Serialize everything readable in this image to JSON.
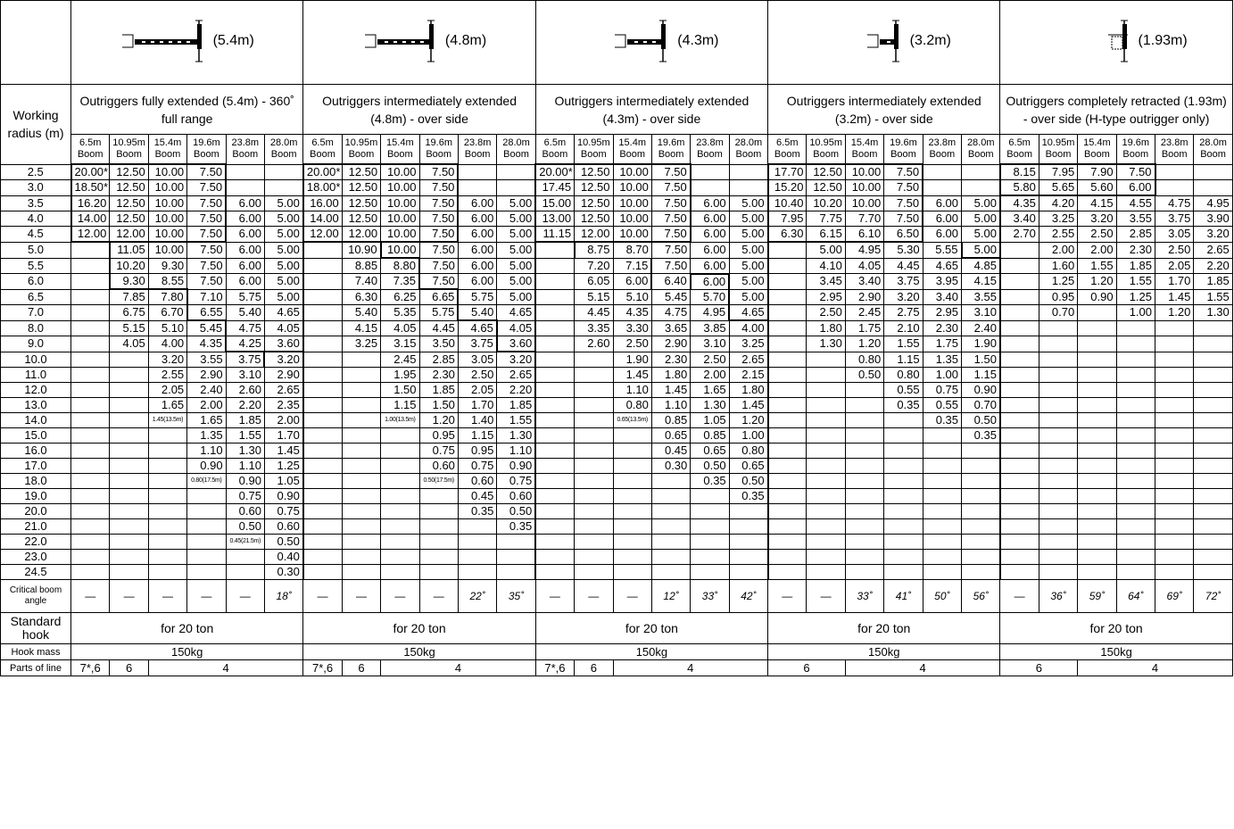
{
  "header": {
    "working_radius_label": "Working radius (m)",
    "critical_angle_label": "Critical boom angle",
    "standard_hook_label": "Standard hook",
    "hook_mass_label": "Hook mass",
    "parts_of_line_label": "Parts of line"
  },
  "booms": [
    "6.5m Boom",
    "10.95m Boom",
    "15.4m Boom",
    "19.6m Boom",
    "23.8m Boom",
    "28.0m Boom"
  ],
  "configs": [
    {
      "icon": "outrigger-fully-extended-icon",
      "extension": "(5.4m)",
      "description": "Outriggers fully extended (5.4m) - 360˚ full range",
      "critical_angles": [
        "—",
        "—",
        "—",
        "—",
        "—",
        "18˚"
      ],
      "hook": "for 20 ton",
      "hook_mass": "150kg",
      "parts": [
        "7*,6",
        "6",
        "4"
      ],
      "parts_spans": [
        1,
        1,
        4
      ]
    },
    {
      "icon": "outrigger-intermediate-4.8-icon",
      "extension": "(4.8m)",
      "description": "Outriggers intermediately extended (4.8m) - over side",
      "critical_angles": [
        "—",
        "—",
        "—",
        "—",
        "22˚",
        "35˚"
      ],
      "hook": "for 20 ton",
      "hook_mass": "150kg",
      "parts": [
        "7*,6",
        "6",
        "4"
      ],
      "parts_spans": [
        1,
        1,
        4
      ]
    },
    {
      "icon": "outrigger-intermediate-4.3-icon",
      "extension": "(4.3m)",
      "description": "Outriggers intermediately extended (4.3m) - over side",
      "critical_angles": [
        "—",
        "—",
        "—",
        "12˚",
        "33˚",
        "42˚"
      ],
      "hook": "for 20 ton",
      "hook_mass": "150kg",
      "parts": [
        "7*,6",
        "6",
        "4"
      ],
      "parts_spans": [
        1,
        1,
        4
      ]
    },
    {
      "icon": "outrigger-intermediate-3.2-icon",
      "extension": "(3.2m)",
      "description": "Outriggers intermediately extended (3.2m) - over side",
      "critical_angles": [
        "—",
        "—",
        "33˚",
        "41˚",
        "50˚",
        "56˚"
      ],
      "hook": "for 20 ton",
      "hook_mass": "150kg",
      "parts": [
        "6",
        "4"
      ],
      "parts_spans": [
        2,
        4
      ]
    },
    {
      "icon": "outrigger-retracted-icon",
      "extension": "(1.93m)",
      "description": "Outriggers completely retracted (1.93m) - over side (H-type outrigger only)",
      "critical_angles": [
        "—",
        "36˚",
        "59˚",
        "64˚",
        "69˚",
        "72˚"
      ],
      "hook": "for 20 ton",
      "hook_mass": "150kg",
      "parts": [
        "6",
        "4"
      ],
      "parts_spans": [
        2,
        4
      ]
    }
  ],
  "rows": [
    {
      "r": "2.5",
      "v": [
        "20.00*",
        "12.50",
        "10.00",
        "7.50",
        "",
        "",
        "20.00*",
        "12.50",
        "10.00",
        "7.50",
        "",
        "",
        "20.00*",
        "12.50",
        "10.00",
        "7.50",
        "",
        "",
        "17.70",
        "12.50",
        "10.00",
        "7.50",
        "",
        "",
        "8.15",
        "7.95",
        "7.90",
        "7.50",
        "",
        ""
      ]
    },
    {
      "r": "3.0",
      "v": [
        "18.50*",
        "12.50",
        "10.00",
        "7.50",
        "",
        "",
        "18.00*",
        "12.50",
        "10.00",
        "7.50",
        "",
        "",
        "17.45",
        "12.50",
        "10.00",
        "7.50",
        "",
        "",
        "15.20",
        "12.50",
        "10.00",
        "7.50",
        "",
        "",
        "5.80",
        "5.65",
        "5.60",
        "6.00",
        "",
        ""
      ]
    },
    {
      "r": "3.5",
      "v": [
        "16.20",
        "12.50",
        "10.00",
        "7.50",
        "6.00",
        "5.00",
        "16.00",
        "12.50",
        "10.00",
        "7.50",
        "6.00",
        "5.00",
        "15.00",
        "12.50",
        "10.00",
        "7.50",
        "6.00",
        "5.00",
        "10.40",
        "10.20",
        "10.00",
        "7.50",
        "6.00",
        "5.00",
        "4.35",
        "4.20",
        "4.15",
        "4.55",
        "4.75",
        "4.95"
      ]
    },
    {
      "r": "4.0",
      "v": [
        "14.00",
        "12.50",
        "10.00",
        "7.50",
        "6.00",
        "5.00",
        "14.00",
        "12.50",
        "10.00",
        "7.50",
        "6.00",
        "5.00",
        "13.00",
        "12.50",
        "10.00",
        "7.50",
        "6.00",
        "5.00",
        "7.95",
        "7.75",
        "7.70",
        "7.50",
        "6.00",
        "5.00",
        "3.40",
        "3.25",
        "3.20",
        "3.55",
        "3.75",
        "3.90"
      ]
    },
    {
      "r": "4.5",
      "v": [
        "12.00",
        "12.00",
        "10.00",
        "7.50",
        "6.00",
        "5.00",
        "12.00",
        "12.00",
        "10.00",
        "7.50",
        "6.00",
        "5.00",
        "11.15",
        "12.00",
        "10.00",
        "7.50",
        "6.00",
        "5.00",
        "6.30",
        "6.15",
        "6.10",
        "6.50",
        "6.00",
        "5.00",
        "2.70",
        "2.55",
        "2.50",
        "2.85",
        "3.05",
        "3.20"
      ]
    },
    {
      "r": "5.0",
      "v": [
        "",
        "11.05",
        "10.00",
        "7.50",
        "6.00",
        "5.00",
        "",
        "10.90",
        "10.00",
        "7.50",
        "6.00",
        "5.00",
        "",
        "8.75",
        "8.70",
        "7.50",
        "6.00",
        "5.00",
        "",
        "5.00",
        "4.95",
        "5.30",
        "5.55",
        "5.00",
        "",
        "2.00",
        "2.00",
        "2.30",
        "2.50",
        "2.65"
      ]
    },
    {
      "r": "5.5",
      "v": [
        "",
        "10.20",
        "9.30",
        "7.50",
        "6.00",
        "5.00",
        "",
        "8.85",
        "8.80",
        "7.50",
        "6.00",
        "5.00",
        "",
        "7.20",
        "7.15",
        "7.50",
        "6.00",
        "5.00",
        "",
        "4.10",
        "4.05",
        "4.45",
        "4.65",
        "4.85",
        "",
        "1.60",
        "1.55",
        "1.85",
        "2.05",
        "2.20"
      ]
    },
    {
      "r": "6.0",
      "v": [
        "",
        "9.30",
        "8.55",
        "7.50",
        "6.00",
        "5.00",
        "",
        "7.40",
        "7.35",
        "7.50",
        "6.00",
        "5.00",
        "",
        "6.05",
        "6.00",
        "6.40",
        "6.00",
        "5.00",
        "",
        "3.45",
        "3.40",
        "3.75",
        "3.95",
        "4.15",
        "",
        "1.25",
        "1.20",
        "1.55",
        "1.70",
        "1.85"
      ]
    },
    {
      "r": "6.5",
      "v": [
        "",
        "7.85",
        "7.80",
        "7.10",
        "5.75",
        "5.00",
        "",
        "6.30",
        "6.25",
        "6.65",
        "5.75",
        "5.00",
        "",
        "5.15",
        "5.10",
        "5.45",
        "5.70",
        "5.00",
        "",
        "2.95",
        "2.90",
        "3.20",
        "3.40",
        "3.55",
        "",
        "0.95",
        "0.90",
        "1.25",
        "1.45",
        "1.55"
      ]
    },
    {
      "r": "7.0",
      "v": [
        "",
        "6.75",
        "6.70",
        "6.55",
        "5.40",
        "4.65",
        "",
        "5.40",
        "5.35",
        "5.75",
        "5.40",
        "4.65",
        "",
        "4.45",
        "4.35",
        "4.75",
        "4.95",
        "4.65",
        "",
        "2.50",
        "2.45",
        "2.75",
        "2.95",
        "3.10",
        "",
        "0.70",
        "",
        "1.00",
        "1.20",
        "1.30"
      ]
    },
    {
      "r": "8.0",
      "v": [
        "",
        "5.15",
        "5.10",
        "5.45",
        "4.75",
        "4.05",
        "",
        "4.15",
        "4.05",
        "4.45",
        "4.65",
        "4.05",
        "",
        "3.35",
        "3.30",
        "3.65",
        "3.85",
        "4.00",
        "",
        "1.80",
        "1.75",
        "2.10",
        "2.30",
        "2.40",
        "",
        "",
        "",
        "",
        "",
        ""
      ]
    },
    {
      "r": "9.0",
      "v": [
        "",
        "4.05",
        "4.00",
        "4.35",
        "4.25",
        "3.60",
        "",
        "3.25",
        "3.15",
        "3.50",
        "3.75",
        "3.60",
        "",
        "2.60",
        "2.50",
        "2.90",
        "3.10",
        "3.25",
        "",
        "1.30",
        "1.20",
        "1.55",
        "1.75",
        "1.90",
        "",
        "",
        "",
        "",
        "",
        ""
      ]
    },
    {
      "r": "10.0",
      "v": [
        "",
        "",
        "3.20",
        "3.55",
        "3.75",
        "3.20",
        "",
        "",
        "2.45",
        "2.85",
        "3.05",
        "3.20",
        "",
        "",
        "1.90",
        "2.30",
        "2.50",
        "2.65",
        "",
        "",
        "0.80",
        "1.15",
        "1.35",
        "1.50",
        "",
        "",
        "",
        "",
        "",
        ""
      ]
    },
    {
      "r": "11.0",
      "v": [
        "",
        "",
        "2.55",
        "2.90",
        "3.10",
        "2.90",
        "",
        "",
        "1.95",
        "2.30",
        "2.50",
        "2.65",
        "",
        "",
        "1.45",
        "1.80",
        "2.00",
        "2.15",
        "",
        "",
        "0.50",
        "0.80",
        "1.00",
        "1.15",
        "",
        "",
        "",
        "",
        "",
        ""
      ]
    },
    {
      "r": "12.0",
      "v": [
        "",
        "",
        "2.05",
        "2.40",
        "2.60",
        "2.65",
        "",
        "",
        "1.50",
        "1.85",
        "2.05",
        "2.20",
        "",
        "",
        "1.10",
        "1.45",
        "1.65",
        "1.80",
        "",
        "",
        "",
        "0.55",
        "0.75",
        "0.90",
        "",
        "",
        "",
        "",
        "",
        ""
      ]
    },
    {
      "r": "13.0",
      "v": [
        "",
        "",
        "1.65",
        "2.00",
        "2.20",
        "2.35",
        "",
        "",
        "1.15",
        "1.50",
        "1.70",
        "1.85",
        "",
        "",
        "0.80",
        "1.10",
        "1.30",
        "1.45",
        "",
        "",
        "",
        "0.35",
        "0.55",
        "0.70",
        "",
        "",
        "",
        "",
        "",
        ""
      ]
    },
    {
      "r": "14.0",
      "v": [
        "",
        "",
        "1.45(13.5m)",
        "1.65",
        "1.85",
        "2.00",
        "",
        "",
        "1.00(13.5m)",
        "1.20",
        "1.40",
        "1.55",
        "",
        "",
        "0.65(13.5m)",
        "0.85",
        "1.05",
        "1.20",
        "",
        "",
        "",
        "",
        "0.35",
        "0.50",
        "",
        "",
        "",
        "",
        "",
        ""
      ]
    },
    {
      "r": "15.0",
      "v": [
        "",
        "",
        "",
        "1.35",
        "1.55",
        "1.70",
        "",
        "",
        "",
        "0.95",
        "1.15",
        "1.30",
        "",
        "",
        "",
        "0.65",
        "0.85",
        "1.00",
        "",
        "",
        "",
        "",
        "",
        "0.35",
        "",
        "",
        "",
        "",
        "",
        ""
      ]
    },
    {
      "r": "16.0",
      "v": [
        "",
        "",
        "",
        "1.10",
        "1.30",
        "1.45",
        "",
        "",
        "",
        "0.75",
        "0.95",
        "1.10",
        "",
        "",
        "",
        "0.45",
        "0.65",
        "0.80",
        "",
        "",
        "",
        "",
        "",
        "",
        "",
        "",
        "",
        "",
        "",
        ""
      ]
    },
    {
      "r": "17.0",
      "v": [
        "",
        "",
        "",
        "0.90",
        "1.10",
        "1.25",
        "",
        "",
        "",
        "0.60",
        "0.75",
        "0.90",
        "",
        "",
        "",
        "0.30",
        "0.50",
        "0.65",
        "",
        "",
        "",
        "",
        "",
        "",
        "",
        "",
        "",
        "",
        "",
        ""
      ]
    },
    {
      "r": "18.0",
      "v": [
        "",
        "",
        "",
        "0.80(17.5m)",
        "0.90",
        "1.05",
        "",
        "",
        "",
        "0.50(17.5m)",
        "0.60",
        "0.75",
        "",
        "",
        "",
        "",
        "0.35",
        "0.50",
        "",
        "",
        "",
        "",
        "",
        "",
        "",
        "",
        "",
        "",
        "",
        ""
      ]
    },
    {
      "r": "19.0",
      "v": [
        "",
        "",
        "",
        "",
        "0.75",
        "0.90",
        "",
        "",
        "",
        "",
        "0.45",
        "0.60",
        "",
        "",
        "",
        "",
        "",
        "0.35",
        "",
        "",
        "",
        "",
        "",
        "",
        "",
        "",
        "",
        "",
        "",
        ""
      ]
    },
    {
      "r": "20.0",
      "v": [
        "",
        "",
        "",
        "",
        "0.60",
        "0.75",
        "",
        "",
        "",
        "",
        "0.35",
        "0.50",
        "",
        "",
        "",
        "",
        "",
        "",
        "",
        "",
        "",
        "",
        "",
        "",
        "",
        "",
        "",
        "",
        "",
        ""
      ]
    },
    {
      "r": "21.0",
      "v": [
        "",
        "",
        "",
        "",
        "0.50",
        "0.60",
        "",
        "",
        "",
        "",
        "",
        "0.35",
        "",
        "",
        "",
        "",
        "",
        "",
        "",
        "",
        "",
        "",
        "",
        "",
        "",
        "",
        "",
        "",
        "",
        ""
      ]
    },
    {
      "r": "22.0",
      "v": [
        "",
        "",
        "",
        "",
        "0.45(21.5m)",
        "0.50",
        "",
        "",
        "",
        "",
        "",
        "",
        "",
        "",
        "",
        "",
        "",
        "",
        "",
        "",
        "",
        "",
        "",
        "",
        "",
        "",
        "",
        "",
        "",
        ""
      ]
    },
    {
      "r": "23.0",
      "v": [
        "",
        "",
        "",
        "",
        "",
        "0.40",
        "",
        "",
        "",
        "",
        "",
        "",
        "",
        "",
        "",
        "",
        "",
        "",
        "",
        "",
        "",
        "",
        "",
        "",
        "",
        "",
        "",
        "",
        "",
        ""
      ]
    },
    {
      "r": "24.5",
      "v": [
        "",
        "",
        "",
        "",
        "",
        "0.30",
        "",
        "",
        "",
        "",
        "",
        "",
        "",
        "",
        "",
        "",
        "",
        "",
        "",
        "",
        "",
        "",
        "",
        "",
        "",
        "",
        "",
        "",
        "",
        ""
      ]
    }
  ]
}
